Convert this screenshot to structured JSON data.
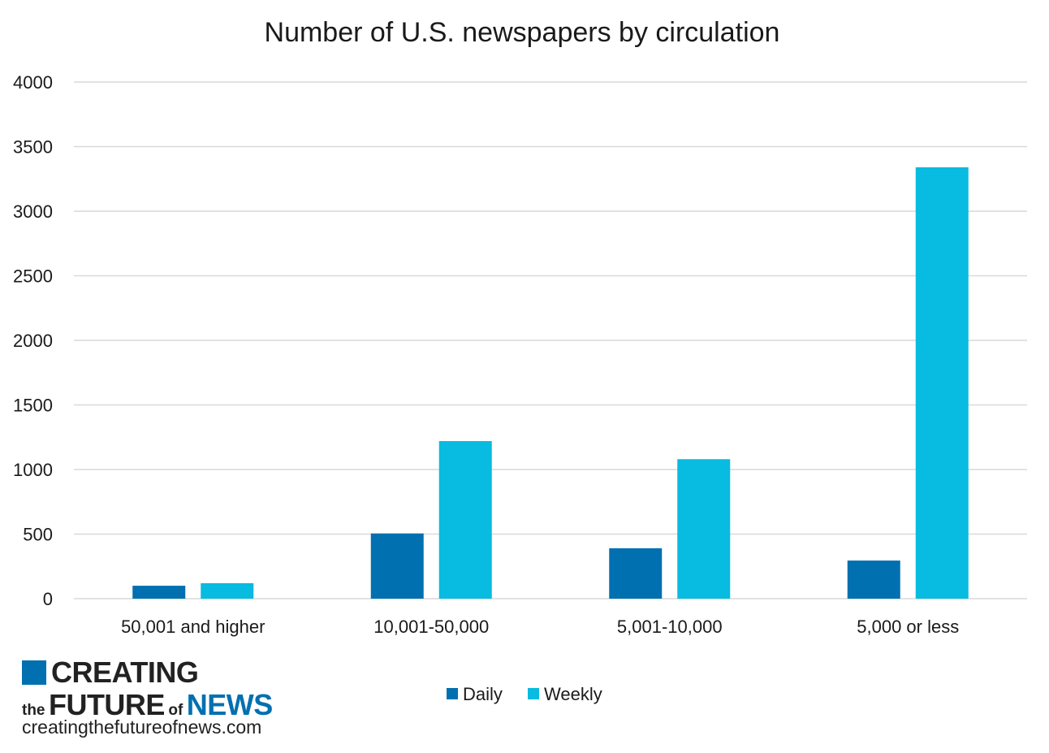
{
  "chart_data": {
    "type": "bar",
    "title": "Number of U.S. newspapers by circulation",
    "categories": [
      "50,001 and higher",
      "10,001-50,000",
      "5,001-10,000",
      "5,000 or less"
    ],
    "series": [
      {
        "name": "Daily",
        "color": "#0070b0",
        "values": [
          100,
          505,
          390,
          295
        ]
      },
      {
        "name": "Weekly",
        "color": "#08bbe0",
        "values": [
          120,
          1220,
          1080,
          3340
        ]
      }
    ],
    "ylim": [
      0,
      4000
    ],
    "yticks": [
      0,
      500,
      1000,
      1500,
      2000,
      2500,
      3000,
      3500,
      4000
    ],
    "ytick_labels": [
      "0",
      "500",
      "1000",
      "1500",
      "2000",
      "2500",
      "3000",
      "3500",
      "4000"
    ],
    "xlabel": "",
    "ylabel": "",
    "grid": true,
    "legend_position": "bottom-center"
  },
  "logo": {
    "line1": "CREATING",
    "the": "the",
    "future": "FUTURE",
    "of": "of",
    "news": "NEWS",
    "url": "creatingthefutureofnews.com",
    "brand_color": "#0070b0"
  }
}
